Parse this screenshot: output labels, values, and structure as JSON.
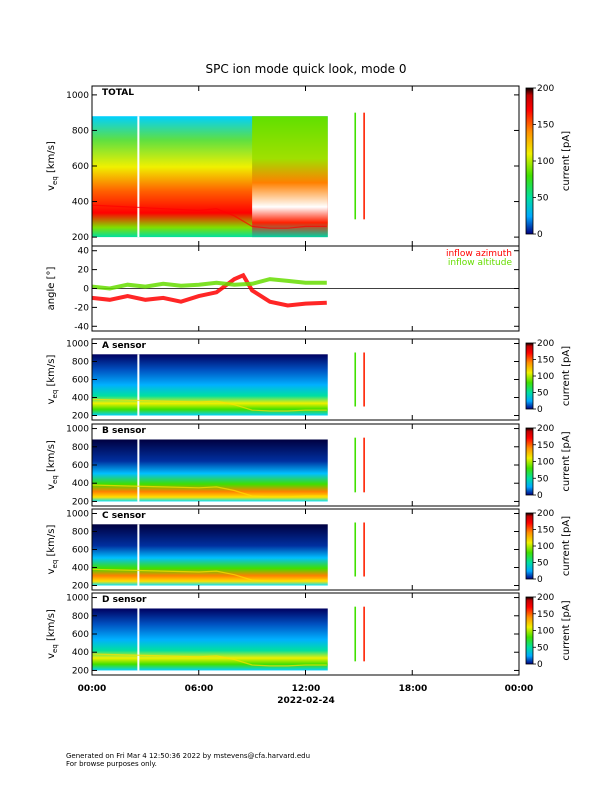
{
  "chart_data": {
    "type": "heatmap",
    "title": "SPC ion mode quick look, mode 0",
    "date_label": "2022-02-24",
    "x_ticks": [
      "00:00",
      "06:00",
      "12:00",
      "18:00",
      "00:00"
    ],
    "x_range_hours": [
      0,
      24
    ],
    "data_gap_hours": [
      13.25,
      24
    ],
    "spike_hours": [
      14.75,
      15.25
    ],
    "panels": [
      {
        "name": "total",
        "label": "TOTAL",
        "ylabel_main": "v",
        "ylabel_sub": "eq",
        "ylabel_units": "[km/s]",
        "ylim": [
          150,
          1050
        ],
        "yticks": [
          200,
          400,
          600,
          800,
          1000
        ],
        "colorbar": {
          "label": "current [pA]",
          "range": [
            0,
            200
          ],
          "ticks": [
            0,
            50,
            100,
            150,
            200
          ]
        }
      },
      {
        "name": "angle",
        "ylabel": "angle [°]",
        "ylim": [
          -45,
          45
        ],
        "yticks": [
          -40,
          -20,
          0,
          20,
          40
        ],
        "series": [
          {
            "name": "inflow azimuth",
            "color": "#ff0000",
            "values_by_hour": [
              [
                0,
                -10
              ],
              [
                1,
                -12
              ],
              [
                2,
                -8
              ],
              [
                3,
                -12
              ],
              [
                4,
                -10
              ],
              [
                5,
                -14
              ],
              [
                6,
                -8
              ],
              [
                7,
                -4
              ],
              [
                8,
                10
              ],
              [
                8.5,
                14
              ],
              [
                9,
                -2
              ],
              [
                10,
                -14
              ],
              [
                11,
                -18
              ],
              [
                12,
                -16
              ],
              [
                13.2,
                -15
              ]
            ]
          },
          {
            "name": "inflow altitude",
            "color": "#66dd00",
            "values_by_hour": [
              [
                0,
                2
              ],
              [
                1,
                0
              ],
              [
                2,
                4
              ],
              [
                3,
                2
              ],
              [
                4,
                5
              ],
              [
                5,
                3
              ],
              [
                6,
                4
              ],
              [
                7,
                6
              ],
              [
                8,
                4
              ],
              [
                9,
                5
              ],
              [
                10,
                10
              ],
              [
                11,
                8
              ],
              [
                12,
                6
              ],
              [
                13.2,
                6
              ]
            ]
          }
        ]
      },
      {
        "name": "sensor-a",
        "label": "A sensor",
        "ylabel_main": "v",
        "ylabel_sub": "eq",
        "ylabel_units": "[km/s]",
        "ylim": [
          150,
          1050
        ],
        "yticks": [
          200,
          400,
          600,
          800,
          1000
        ],
        "colorbar": {
          "label": "current [pA]",
          "range": [
            0,
            200
          ],
          "ticks": [
            0,
            50,
            100,
            150,
            200
          ]
        }
      },
      {
        "name": "sensor-b",
        "label": "B sensor",
        "ylabel_main": "v",
        "ylabel_sub": "eq",
        "ylabel_units": "[km/s]",
        "ylim": [
          150,
          1050
        ],
        "yticks": [
          200,
          400,
          600,
          800,
          1000
        ],
        "colorbar": {
          "label": "current [pA]",
          "range": [
            0,
            200
          ],
          "ticks": [
            0,
            50,
            100,
            150,
            200
          ]
        }
      },
      {
        "name": "sensor-c",
        "label": "C sensor",
        "ylabel_main": "v",
        "ylabel_sub": "eq",
        "ylabel_units": "[km/s]",
        "ylim": [
          150,
          1050
        ],
        "yticks": [
          200,
          400,
          600,
          800,
          1000
        ],
        "colorbar": {
          "label": "current [pA]",
          "range": [
            0,
            200
          ],
          "ticks": [
            0,
            50,
            100,
            150,
            200
          ]
        }
      },
      {
        "name": "sensor-d",
        "label": "D sensor",
        "ylabel_main": "v",
        "ylabel_sub": "eq",
        "ylabel_units": "[km/s]",
        "ylim": [
          150,
          1050
        ],
        "yticks": [
          200,
          400,
          600,
          800,
          1000
        ],
        "colorbar": {
          "label": "current [pA]",
          "range": [
            0,
            200
          ],
          "ticks": [
            0,
            50,
            100,
            150,
            200
          ]
        }
      }
    ],
    "peak_velocity_by_hour": [
      [
        0,
        380
      ],
      [
        2,
        370
      ],
      [
        4,
        360
      ],
      [
        6,
        350
      ],
      [
        7,
        360
      ],
      [
        8,
        320
      ],
      [
        9,
        260
      ],
      [
        10,
        250
      ],
      [
        11,
        250
      ],
      [
        12,
        260
      ],
      [
        13.2,
        260
      ]
    ]
  },
  "footer": {
    "line1": "Generated on Fri Mar  4 12:50:36 2022 by mstevens@cfa.harvard.edu",
    "line2": "For browse purposes only."
  }
}
